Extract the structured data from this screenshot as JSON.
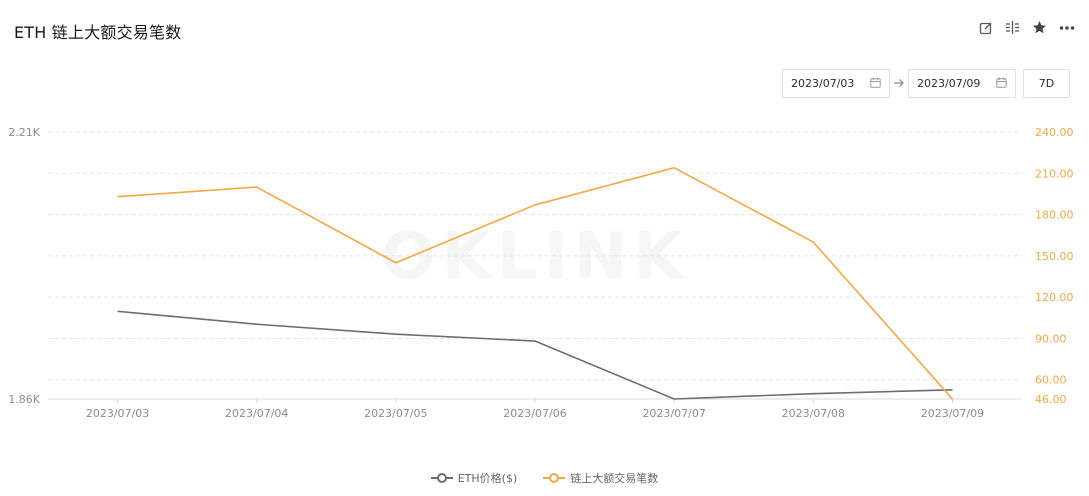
{
  "header": {
    "title": "ETH 链上大额交易笔数",
    "icons": [
      "edit-icon",
      "split-icon",
      "star-icon",
      "more-icon"
    ]
  },
  "filters": {
    "start_date": "2023/07/03",
    "end_date": "2023/07/09",
    "range_label": "7D"
  },
  "chart_data": {
    "type": "line",
    "title": "",
    "categories": [
      "2023/07/03",
      "2023/07/04",
      "2023/07/05",
      "2023/07/06",
      "2023/07/07",
      "2023/07/08",
      "2023/07/09"
    ],
    "series": [
      {
        "name": "ETH价格($)",
        "axis": "left",
        "color": "#6b6b7d",
        "values": [
          1.975,
          1.958,
          1.945,
          1.936,
          1.86,
          1.867,
          1.872
        ]
      },
      {
        "name": "链上大额交易笔数",
        "axis": "right",
        "color": "#f5a742",
        "values": [
          193,
          200,
          145,
          187,
          214,
          160,
          46
        ]
      }
    ],
    "y_left": {
      "min": 1.86,
      "max": 2.21,
      "ticks": [
        1.86,
        2.21
      ],
      "tick_labels": [
        "1.86K",
        "2.21K"
      ]
    },
    "y_right": {
      "min": 46,
      "max": 240,
      "ticks": [
        46,
        60,
        90,
        120,
        150,
        180,
        210,
        240
      ],
      "tick_labels": [
        "46.00",
        "60.00",
        "90.00",
        "120.00",
        "150.00",
        "180.00",
        "210.00",
        "240.00"
      ]
    },
    "grid": true,
    "legend_position": "bottom-center",
    "watermark": "OKLINK"
  }
}
